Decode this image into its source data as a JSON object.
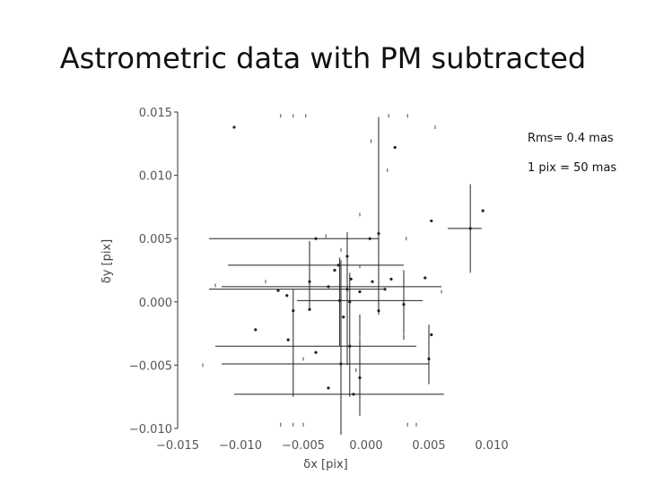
{
  "slide": {
    "title": "Astrometric data with PM subtracted",
    "rms_text": "Rms=  0.4 mas",
    "scale_text": "1 pix =  50 mas"
  },
  "chart_data": {
    "type": "scatter",
    "title": "",
    "xlabel": "δx  [pix]",
    "ylabel": "δy  [pix]",
    "xlim": [
      -0.015,
      0.01
    ],
    "ylim": [
      -0.01,
      0.015
    ],
    "xticks": [
      -0.015,
      -0.01,
      -0.005,
      0.0,
      0.005,
      0.01
    ],
    "xtick_labels": [
      "−0.015",
      "−0.010",
      "−0.005",
      "0.000",
      "0.005",
      "0.010"
    ],
    "yticks": [
      -0.01,
      -0.005,
      0.0,
      0.005,
      0.01,
      0.015
    ],
    "ytick_labels": [
      "−0.010",
      "−0.005",
      "0.000",
      "0.005",
      "0.010",
      "0.015"
    ],
    "grid": false,
    "legend": "none",
    "marker_color": "#222222",
    "points": [
      {
        "x": -0.0105,
        "y": 0.0138
      },
      {
        "x": 0.0023,
        "y": 0.0122
      },
      {
        "x": 0.0052,
        "y": 0.0064
      },
      {
        "x": 0.0093,
        "y": 0.0072
      },
      {
        "x": 0.0083,
        "y": 0.0058,
        "xlo": 0.0065,
        "xhi": 0.0092,
        "ylo": 0.0023,
        "yhi": 0.0093
      },
      {
        "x": -0.004,
        "y": 0.005,
        "xlo": -0.0125,
        "xhi": 0.001
      },
      {
        "x": 0.001,
        "y": 0.0054,
        "ylo": -0.001,
        "yhi": 0.0146
      },
      {
        "x": -0.0015,
        "y": 0.0036,
        "ylo": -0.005,
        "yhi": 0.0055
      },
      {
        "x": -0.0022,
        "y": 0.0029,
        "xlo": -0.011,
        "xhi": 0.003
      },
      {
        "x": 0.0003,
        "y": 0.005
      },
      {
        "x": -0.0045,
        "y": 0.0016,
        "ylo": -0.0005,
        "yhi": 0.0048
      },
      {
        "x": -0.0025,
        "y": 0.0025
      },
      {
        "x": -0.0012,
        "y": 0.0018
      },
      {
        "x": 0.0005,
        "y": 0.0016
      },
      {
        "x": 0.002,
        "y": 0.0018
      },
      {
        "x": 0.0047,
        "y": 0.0019
      },
      {
        "x": -0.003,
        "y": 0.0012,
        "xlo": -0.0115,
        "xhi": 0.006
      },
      {
        "x": -0.0015,
        "y": 0.001,
        "xlo": -0.0125,
        "xhi": 0.0016
      },
      {
        "x": 0.0015,
        "y": 0.001
      },
      {
        "x": -0.0005,
        "y": 0.0008
      },
      {
        "x": -0.007,
        "y": 0.0009
      },
      {
        "x": -0.0063,
        "y": 0.0005
      },
      {
        "x": -0.0021,
        "y": 0.0001,
        "xlo": -0.0055,
        "xhi": 0.0045,
        "ylo": -0.0035,
        "yhi": 0.0035
      },
      {
        "x": -0.0013,
        "y": 0.0,
        "ylo": -0.0075,
        "yhi": 0.0023
      },
      {
        "x": 0.003,
        "y": -0.0002,
        "ylo": -0.003,
        "yhi": 0.0025
      },
      {
        "x": -0.0058,
        "y": -0.0007,
        "ylo": -0.0075,
        "yhi": 0.001
      },
      {
        "x": -0.0045,
        "y": -0.0006
      },
      {
        "x": -0.0018,
        "y": -0.0012
      },
      {
        "x": 0.001,
        "y": -0.0007
      },
      {
        "x": -0.0088,
        "y": -0.0022
      },
      {
        "x": -0.0013,
        "y": -0.0035,
        "xlo": -0.012,
        "xhi": 0.004
      },
      {
        "x": -0.0062,
        "y": -0.003
      },
      {
        "x": 0.0052,
        "y": -0.0026
      },
      {
        "x": -0.004,
        "y": -0.004
      },
      {
        "x": -0.002,
        "y": -0.0049,
        "xlo": -0.0115,
        "xhi": 0.005,
        "ylo": -0.0105,
        "yhi": 0.0033
      },
      {
        "x": 0.005,
        "y": -0.0045,
        "ylo": -0.0065,
        "yhi": -0.0018
      },
      {
        "x": -0.0005,
        "y": -0.006,
        "ylo": -0.009,
        "yhi": -0.001
      },
      {
        "x": -0.003,
        "y": -0.0068
      },
      {
        "x": -0.001,
        "y": -0.0073,
        "xlo": -0.0105,
        "xhi": 0.0062
      }
    ],
    "edge_ticks": [
      {
        "x": -0.0068,
        "y": 0.0147
      },
      {
        "x": -0.0058,
        "y": 0.0147
      },
      {
        "x": -0.0048,
        "y": 0.0147
      },
      {
        "x": 0.0018,
        "y": 0.0147
      },
      {
        "x": 0.0033,
        "y": 0.0147
      },
      {
        "x": 0.0055,
        "y": 0.0138
      },
      {
        "x": 0.0004,
        "y": 0.0127
      },
      {
        "x": 0.0017,
        "y": 0.0104
      },
      {
        "x": -0.0005,
        "y": 0.0069
      },
      {
        "x": -0.0032,
        "y": 0.0052
      },
      {
        "x": -0.002,
        "y": 0.0041
      },
      {
        "x": 0.0032,
        "y": 0.005
      },
      {
        "x": -0.0005,
        "y": 0.0028
      },
      {
        "x": -0.008,
        "y": 0.0016
      },
      {
        "x": -0.012,
        "y": 0.0013
      },
      {
        "x": 0.006,
        "y": 0.0008
      },
      {
        "x": -0.0005,
        "y": -0.0028
      },
      {
        "x": 0.003,
        "y": -0.0025
      },
      {
        "x": -0.005,
        "y": -0.0045
      },
      {
        "x": -0.0008,
        "y": -0.0054
      },
      {
        "x": -0.013,
        "y": -0.005
      },
      {
        "x": -0.0068,
        "y": -0.0097
      },
      {
        "x": -0.0058,
        "y": -0.0097
      },
      {
        "x": -0.005,
        "y": -0.0097
      },
      {
        "x": 0.0033,
        "y": -0.0097
      },
      {
        "x": 0.004,
        "y": -0.0097
      }
    ]
  }
}
